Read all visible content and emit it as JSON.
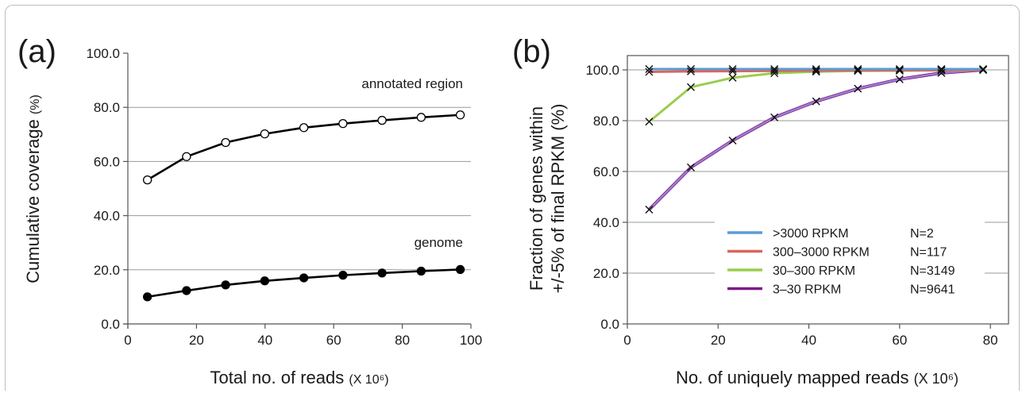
{
  "chart_data": [
    {
      "panel_label": "(a)",
      "type": "line",
      "xlabel": "Total no. of reads",
      "xlabel_unit": "(X 10⁶)",
      "ylabel": "Cumulative coverage",
      "ylabel_unit": "(%)",
      "xlim": [
        0,
        100
      ],
      "ylim": [
        0,
        100
      ],
      "x_ticks": [
        "0",
        "20",
        "40",
        "60",
        "80",
        "100"
      ],
      "y_ticks": [
        "0.0",
        "20.0",
        "40.0",
        "60.0",
        "80.0",
        "100.0"
      ],
      "grid": "horizontal",
      "x": [
        5.7,
        17.1,
        28.5,
        39.9,
        51.3,
        62.7,
        74.1,
        85.5,
        96.9
      ],
      "series": [
        {
          "name": "annotated region",
          "values": [
            53.2,
            61.8,
            67.0,
            70.2,
            72.5,
            74.0,
            75.2,
            76.3,
            77.2
          ],
          "marker": "open-circle",
          "color": "#000000"
        },
        {
          "name": "genome",
          "values": [
            10.0,
            12.3,
            14.4,
            15.9,
            17.0,
            18.0,
            18.8,
            19.5,
            20.1
          ],
          "marker": "filled-circle",
          "color": "#000000"
        }
      ]
    },
    {
      "panel_label": "(b)",
      "type": "line",
      "xlabel": "No. of uniquely mapped reads",
      "xlabel_unit": "(X 10⁶)",
      "ylabel_line1": "Fraction of genes within",
      "ylabel_line2": "+/-5% of final RPKM (%)",
      "xlim": [
        0,
        84
      ],
      "ylim": [
        0,
        100
      ],
      "x_ticks": [
        "0",
        "20",
        "40",
        "60",
        "80"
      ],
      "y_ticks": [
        "0.0",
        "20.0",
        "40.0",
        "60.0",
        "80.0",
        "100.0"
      ],
      "grid": "horizontal",
      "legend_position": "bottom-right",
      "x": [
        4.8,
        14.0,
        23.2,
        32.4,
        41.6,
        50.8,
        60.0,
        69.2,
        78.4
      ],
      "series": [
        {
          "name": ">3000 RPKM",
          "n": "N=2",
          "color": "#5b9bd5",
          "values": [
            100.3,
            100.3,
            100.3,
            100.3,
            100.3,
            100.3,
            100.3,
            100.3,
            100.3
          ]
        },
        {
          "name": "300–3000 RPKM",
          "n": "N=117",
          "color": "#d9665b",
          "values": [
            99.2,
            99.4,
            99.5,
            99.6,
            99.7,
            99.8,
            99.8,
            99.9,
            100.0
          ]
        },
        {
          "name": "30–300 RPKM",
          "n": "N=3149",
          "color": "#9acd4f",
          "values": [
            79.6,
            93.2,
            96.9,
            98.7,
            99.3,
            99.6,
            99.7,
            99.8,
            100.0
          ]
        },
        {
          "name": "3–30  RPKM",
          "n": "N=9641",
          "color": "#7b1a86",
          "overlay_color": "#9d7fcf",
          "values": [
            45.0,
            61.6,
            72.2,
            81.3,
            87.6,
            92.6,
            96.3,
            98.8,
            100.0
          ]
        }
      ]
    }
  ]
}
